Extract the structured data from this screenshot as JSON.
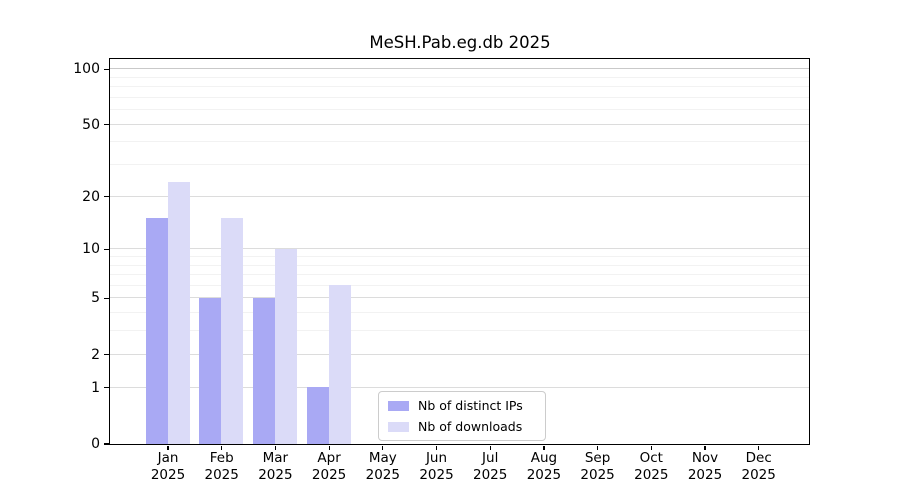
{
  "chart_data": {
    "type": "bar",
    "title": "MeSH.Pab.eg.db 2025",
    "year_label": "2025",
    "categories": [
      "Jan",
      "Feb",
      "Mar",
      "Apr",
      "May",
      "Jun",
      "Jul",
      "Aug",
      "Sep",
      "Oct",
      "Nov",
      "Dec"
    ],
    "series": [
      {
        "name": "Nb of distinct IPs",
        "color": "#a9a9f4",
        "values": [
          15,
          5,
          5,
          1,
          0,
          0,
          0,
          0,
          0,
          0,
          0,
          0
        ]
      },
      {
        "name": "Nb of downloads",
        "color": "#dbdbf8",
        "values": [
          24,
          15,
          10,
          6,
          0,
          0,
          0,
          0,
          0,
          0,
          0,
          0
        ]
      }
    ],
    "y_axis": {
      "scale": "log1p",
      "ticks": [
        0,
        1,
        2,
        5,
        10,
        20,
        50,
        100
      ],
      "minor_ticks": [
        3,
        4,
        6,
        7,
        8,
        9,
        30,
        40,
        60,
        70,
        80,
        90
      ],
      "lim": [
        0,
        100
      ]
    },
    "xlabel": "",
    "ylabel": "",
    "grid": "on",
    "legend_position": "bottom-center",
    "colors": {
      "axis": "#000000",
      "grid_major": "#dcdcdc",
      "grid_minor": "#f2f2f2",
      "grid_top": "#c9c9c9"
    }
  }
}
